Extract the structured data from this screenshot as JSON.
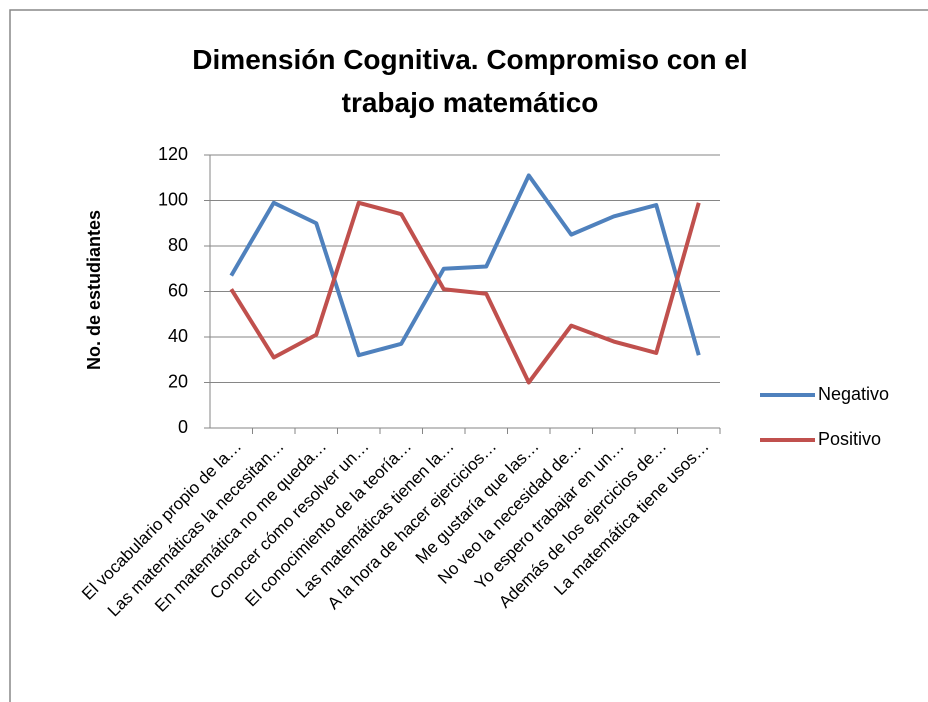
{
  "chart_data": {
    "type": "line",
    "title": "Dimensión Cognitiva. Compromiso con el trabajo matemático",
    "y_label": "No. de estudiantes",
    "categories": [
      "El vocabulario propio de la…",
      "Las matemáticas la necesitan…",
      "En matemática no me queda…",
      "Conocer cómo resolver un…",
      "El conocimiento de la teoría…",
      "Las matemáticas tienen la…",
      "A la hora de hacer ejercicios…",
      "Me gustaría que las…",
      "No veo la necesidad de…",
      "Yo espero trabajar en un…",
      "Además de los ejercicios de…",
      "La matemática tiene usos…"
    ],
    "series": [
      {
        "name": "Negativo",
        "color": "#4f81bd",
        "values": [
          67,
          99,
          90,
          32,
          37,
          70,
          71,
          111,
          85,
          93,
          98,
          32
        ]
      },
      {
        "name": "Positivo",
        "color": "#c0504d",
        "values": [
          61,
          31,
          41,
          99,
          94,
          61,
          59,
          20,
          45,
          38,
          33,
          99
        ]
      }
    ],
    "ylim": [
      0,
      120
    ],
    "yticks": [
      0,
      20,
      40,
      60,
      80,
      100,
      120
    ],
    "grid": true,
    "legend": "right"
  }
}
